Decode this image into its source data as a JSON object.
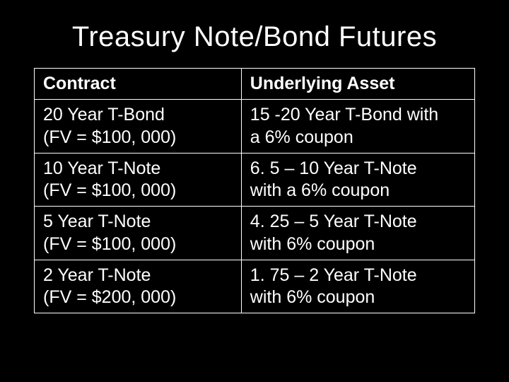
{
  "title": "Treasury Note/Bond Futures",
  "table": {
    "columns": [
      "Contract",
      "Underlying Asset"
    ],
    "rows": [
      {
        "contract_line1": "20 Year T-Bond",
        "contract_line2": "(FV = $100, 000)",
        "underlying_line1": "15 -20 Year T-Bond with",
        "underlying_line2": "a 6% coupon"
      },
      {
        "contract_line1": "10 Year T-Note",
        "contract_line2": "(FV = $100, 000)",
        "underlying_line1": "6. 5 – 10 Year T-Note",
        "underlying_line2": "with a 6% coupon"
      },
      {
        "contract_line1": "5 Year T-Note",
        "contract_line2": "(FV = $100, 000)",
        "underlying_line1": "4. 25 – 5 Year T-Note",
        "underlying_line2": "with 6% coupon"
      },
      {
        "contract_line1": "2 Year T-Note",
        "contract_line2": "(FV = $200, 000)",
        "underlying_line1": "1. 75 – 2 Year T-Note",
        "underlying_line2": "with 6% coupon"
      }
    ],
    "border_color": "#ffffff",
    "text_color": "#ffffff",
    "background_color": "#000000",
    "header_fontweight": 700,
    "cell_fontsize": 25
  },
  "slide_background": "#000000",
  "title_fontsize": 40
}
